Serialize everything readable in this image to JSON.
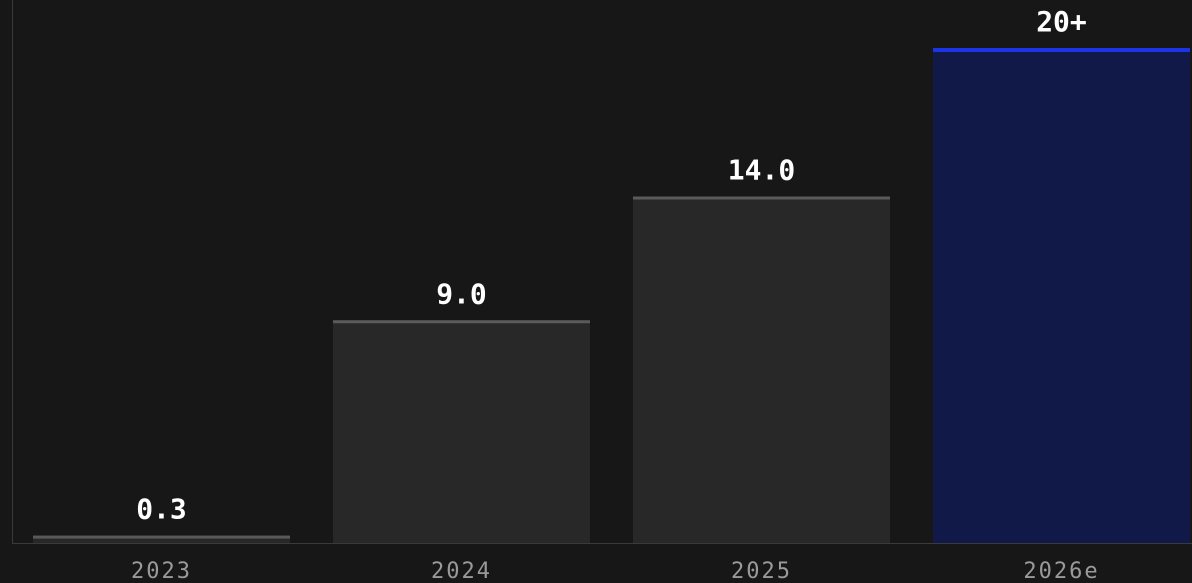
{
  "chart_data": {
    "type": "bar",
    "categories": [
      "2023",
      "2024",
      "2025",
      "2026e"
    ],
    "values": [
      0.3,
      9.0,
      14.0,
      20
    ],
    "value_labels": [
      "0.3",
      "9.0",
      "14.0",
      "20+"
    ],
    "highlight_index": 3,
    "colors": {
      "background": "#171717",
      "bar_fill": "#282828",
      "bar_top": "#5a5a5a",
      "highlight_fill": "#111948",
      "highlight_top": "#1b34e6",
      "axis": "#3a3a3a",
      "value_text": "#ffffff",
      "tick_text": "#9a9a9a"
    },
    "grid": false,
    "legend": "none"
  }
}
